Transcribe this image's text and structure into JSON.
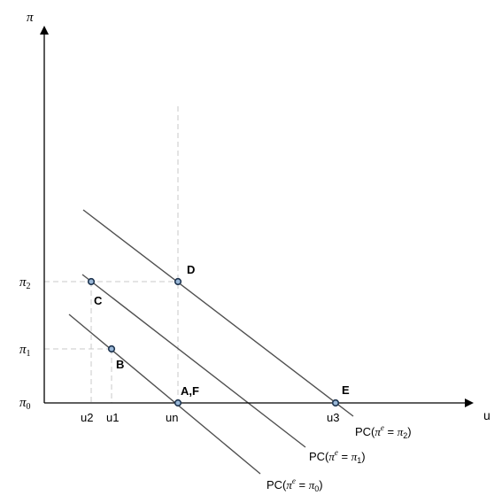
{
  "axes": {
    "y_symbol": "π",
    "x_label": "u"
  },
  "y_ticks": [
    {
      "sym": "π",
      "sub": "2"
    },
    {
      "sym": "π",
      "sub": "1"
    },
    {
      "sym": "π",
      "sub": "0"
    }
  ],
  "x_ticks": [
    "u2",
    "u1",
    "un",
    "u3"
  ],
  "points": [
    "D",
    "C",
    "B",
    "A,F",
    "E"
  ],
  "curves": [
    {
      "prefix": "PC(",
      "var": "π",
      "sup": "e",
      "eq": " = ",
      "rhs": "π",
      "rhs_sub": "2",
      "suffix": ")"
    },
    {
      "prefix": "PC(",
      "var": "π",
      "sup": "e",
      "eq": " = ",
      "rhs": "π",
      "rhs_sub": "1",
      "suffix": ")"
    },
    {
      "prefix": "PC(",
      "var": "π",
      "sup": "e",
      "eq": " = ",
      "rhs": "π",
      "rhs_sub": "0",
      "suffix": ")"
    }
  ],
  "colors": {
    "axis": "#000000",
    "curve": "#505050",
    "guide": "#c8c8c8",
    "point_fill": "#9ab8d8",
    "point_stroke": "#1f3550"
  }
}
